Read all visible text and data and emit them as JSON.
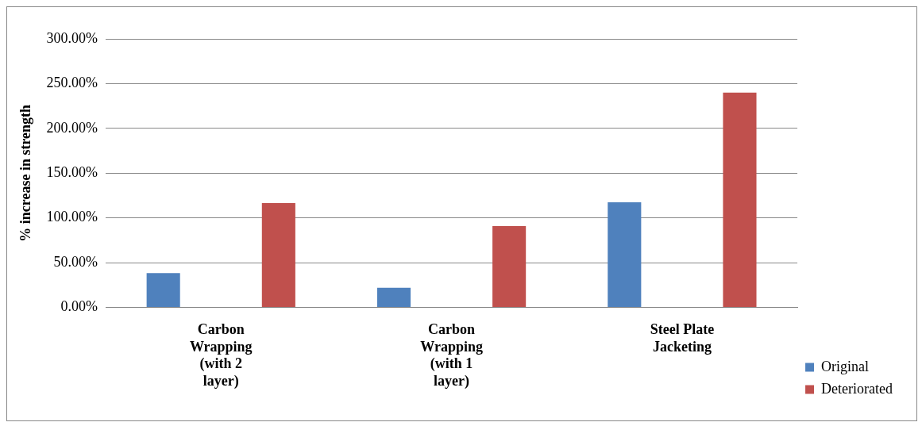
{
  "chart_data": {
    "type": "bar",
    "ylabel": "% increase in strength",
    "categories": [
      "Carbon Wrapping (with 2 layer)",
      "Carbon Wrapping (with 1 layer)",
      "Steel Plate Jacketing"
    ],
    "series": [
      {
        "name": "Original",
        "color": "#4f81bd",
        "values": [
          38.5,
          22,
          117.5
        ]
      },
      {
        "name": "Deteriorated",
        "color": "#c0504d",
        "values": [
          116.5,
          91,
          240
        ]
      }
    ],
    "ylim": [
      0,
      300
    ],
    "yticks": [
      {
        "value": 0,
        "label": "0.00%"
      },
      {
        "value": 50,
        "label": "50.00%"
      },
      {
        "value": 100,
        "label": "100.00%"
      },
      {
        "value": 150,
        "label": "150.00%"
      },
      {
        "value": 200,
        "label": "200.00%"
      },
      {
        "value": 250,
        "label": "250.00%"
      },
      {
        "value": 300,
        "label": "300.00%"
      }
    ],
    "grid": "y",
    "legend": "bottom right"
  }
}
